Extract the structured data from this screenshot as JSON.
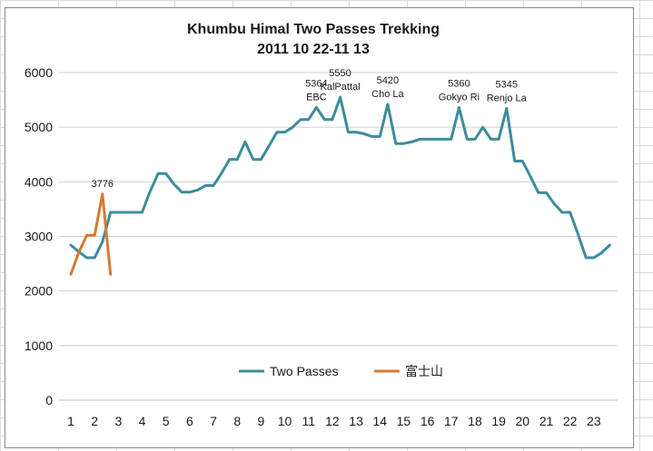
{
  "chart_data": {
    "type": "line",
    "title": "Khumbu Himal Two Passes Trekking",
    "subtitle": "2011 10 22-11 13",
    "xlabel": "",
    "ylabel": "",
    "ylim": [
      0,
      6000
    ],
    "yticks": [
      0,
      1000,
      2000,
      3000,
      4000,
      5000,
      6000
    ],
    "xlim": [
      1,
      24
    ],
    "xticks": [
      1,
      2,
      3,
      4,
      5,
      6,
      7,
      8,
      9,
      10,
      11,
      12,
      13,
      14,
      15,
      16,
      17,
      18,
      19,
      20,
      21,
      22,
      23
    ],
    "grid": "horizontal",
    "legend": "bottom-center",
    "series": [
      {
        "name": "Two Passes",
        "color": "#3d8c9c",
        "x": [
          1,
          1.33,
          1.67,
          2,
          2.33,
          2.67,
          3,
          3.33,
          3.67,
          4,
          4.33,
          4.67,
          5,
          5.33,
          5.67,
          6,
          6.33,
          6.67,
          7,
          7.33,
          7.67,
          8,
          8.33,
          8.67,
          9,
          9.33,
          9.67,
          10,
          10.33,
          10.67,
          11,
          11.33,
          11.67,
          12,
          12.33,
          12.67,
          13,
          13.33,
          13.67,
          14,
          14.33,
          14.67,
          15,
          15.33,
          15.67,
          16,
          16.33,
          16.67,
          17,
          17.33,
          17.67,
          18,
          18.33,
          18.67,
          19,
          19.33,
          19.67,
          20,
          20.33,
          20.67,
          21,
          21.33,
          21.67,
          22,
          22.33,
          22.67,
          23,
          23.33,
          23.67
        ],
        "values": [
          2840,
          2720,
          2610,
          2610,
          2900,
          3440,
          3440,
          3440,
          3440,
          3440,
          3820,
          4150,
          4150,
          3960,
          3810,
          3810,
          3850,
          3930,
          3930,
          4150,
          4410,
          4410,
          4730,
          4410,
          4410,
          4650,
          4910,
          4910,
          5000,
          5140,
          5140,
          5364,
          5140,
          5140,
          5550,
          4910,
          4910,
          4880,
          4830,
          4830,
          5420,
          4700,
          4700,
          4730,
          4780,
          4780,
          4780,
          4780,
          4780,
          5360,
          4780,
          4780,
          5000,
          4780,
          4780,
          5345,
          4380,
          4380,
          4100,
          3800,
          3800,
          3600,
          3440,
          3440,
          3050,
          2610,
          2610,
          2700,
          2840
        ]
      },
      {
        "name": "富士山",
        "color": "#d67a31",
        "x": [
          1,
          1.33,
          1.67,
          2,
          2.33,
          2.67
        ],
        "values": [
          2305,
          2700,
          3020,
          3020,
          3776,
          2305
        ]
      }
    ],
    "annotations": [
      {
        "lines": [
          "3776"
        ],
        "x": 2.33,
        "value": 3776
      },
      {
        "lines": [
          "5364",
          "EBC"
        ],
        "x": 11.33,
        "value": 5364
      },
      {
        "lines": [
          "5550",
          "KalPattal"
        ],
        "x": 12.33,
        "value": 5550
      },
      {
        "lines": [
          "5420",
          "Cho La"
        ],
        "x": 14.33,
        "value": 5420
      },
      {
        "lines": [
          "5360",
          "Gokyo Ri"
        ],
        "x": 17.33,
        "value": 5360
      },
      {
        "lines": [
          "5345",
          "Renjo La"
        ],
        "x": 19.33,
        "value": 5345
      }
    ]
  }
}
